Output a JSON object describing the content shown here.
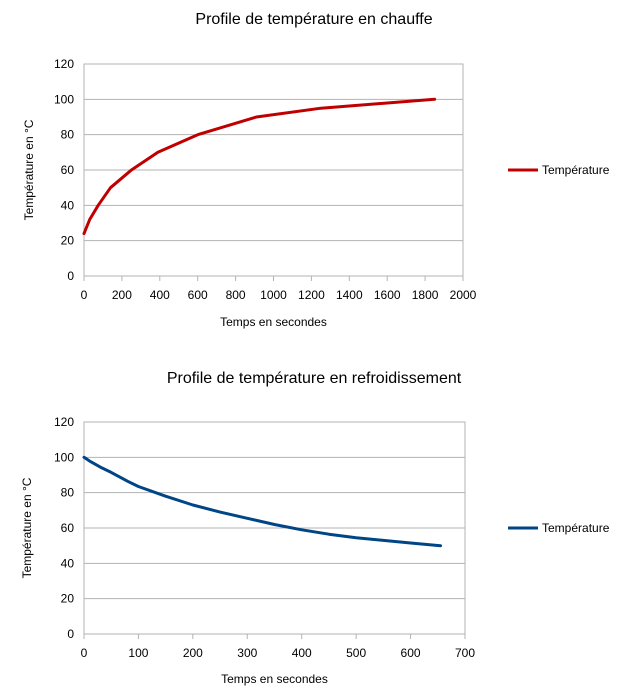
{
  "chart_data": [
    {
      "type": "line",
      "title": "Profile de température en chauffe",
      "xlabel": "Temps en secondes",
      "ylabel": "Température en °C",
      "xlim": [
        0,
        2000
      ],
      "ylim": [
        0,
        120
      ],
      "xticks": [
        0,
        200,
        400,
        600,
        800,
        1000,
        1200,
        1400,
        1600,
        1800,
        2000
      ],
      "yticks": [
        0,
        20,
        40,
        60,
        80,
        100,
        120
      ],
      "grid": true,
      "legend_position": "right",
      "series": [
        {
          "name": "Température",
          "color": "#c00000",
          "x": [
            0,
            30,
            75,
            140,
            250,
            390,
            600,
            910,
            1250,
            1850
          ],
          "y": [
            24,
            32,
            40,
            50,
            60,
            70,
            80,
            90,
            95,
            100
          ]
        }
      ]
    },
    {
      "type": "line",
      "title": "Profile de température en refroidissement",
      "xlabel": "Temps en secondes",
      "ylabel": "Température en °C",
      "xlim": [
        0,
        700
      ],
      "ylim": [
        0,
        120
      ],
      "xticks": [
        0,
        100,
        200,
        300,
        400,
        500,
        600,
        700
      ],
      "yticks": [
        0,
        20,
        40,
        60,
        80,
        100,
        120
      ],
      "grid": true,
      "legend_position": "right",
      "series": [
        {
          "name": "Température",
          "color": "#004586",
          "x": [
            0,
            10,
            30,
            50,
            80,
            100,
            150,
            200,
            250,
            300,
            350,
            400,
            450,
            500,
            550,
            600,
            655
          ],
          "y": [
            100,
            98,
            94.5,
            91.5,
            86.5,
            83.5,
            78,
            73,
            69,
            65.5,
            62,
            59,
            56.5,
            54.5,
            53,
            51.5,
            50
          ]
        }
      ]
    }
  ]
}
